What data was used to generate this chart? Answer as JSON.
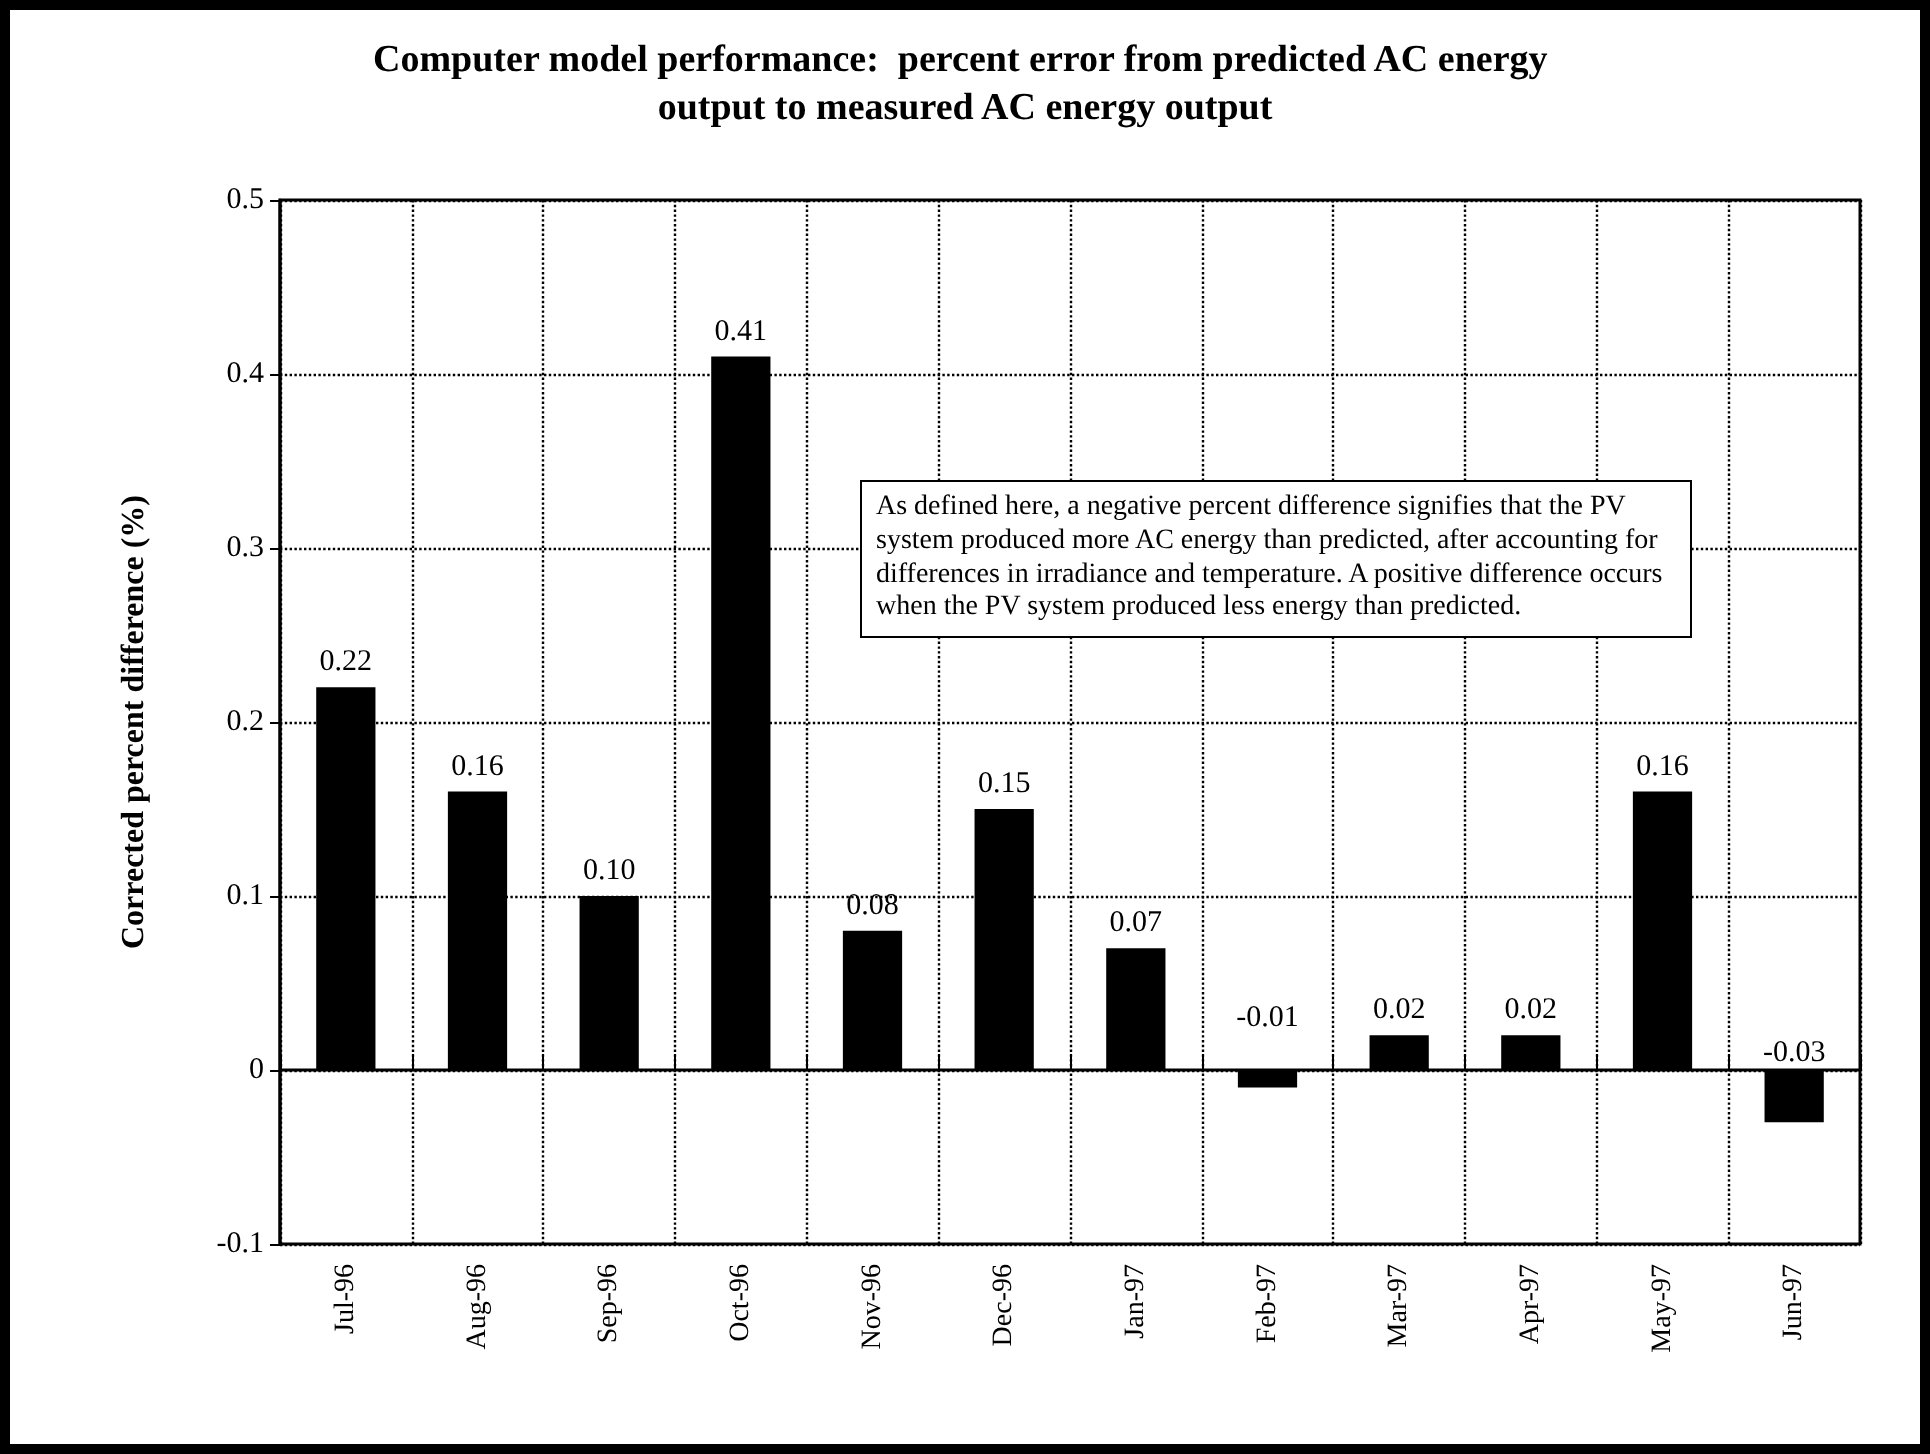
{
  "chart_data": {
    "type": "bar",
    "title": "Computer model performance:  percent error from predicted AC energy output to measured AC energy output",
    "ylabel": "Corrected percent difference (%)",
    "categories": [
      "Jul-96",
      "Aug-96",
      "Sep-96",
      "Oct-96",
      "Nov-96",
      "Dec-96",
      "Jan-97",
      "Feb-97",
      "Mar-97",
      "Apr-97",
      "May-97",
      "Jun-97"
    ],
    "values": [
      0.22,
      0.16,
      0.1,
      0.41,
      0.08,
      0.15,
      0.07,
      -0.01,
      0.02,
      0.02,
      0.16,
      -0.03
    ],
    "value_labels": [
      "0.22",
      "0.16",
      "0.10",
      "0.41",
      "0.08",
      "0.15",
      "0.07",
      "-0.01",
      "0.02",
      "0.02",
      "0.16",
      "-0.03"
    ],
    "color": "#000000",
    "ylim": [
      -0.1,
      0.5
    ],
    "yticks": [
      -0.1,
      0,
      0.1,
      0.2,
      0.3,
      0.4,
      0.5
    ],
    "grid": true,
    "annotations": [
      "As defined here, a negative percent difference signifies that the PV system produced more AC energy than predicted, after accounting for differences in irradiance and temperature.  A positive difference occurs when the PV system produced less energy than predicted."
    ]
  }
}
